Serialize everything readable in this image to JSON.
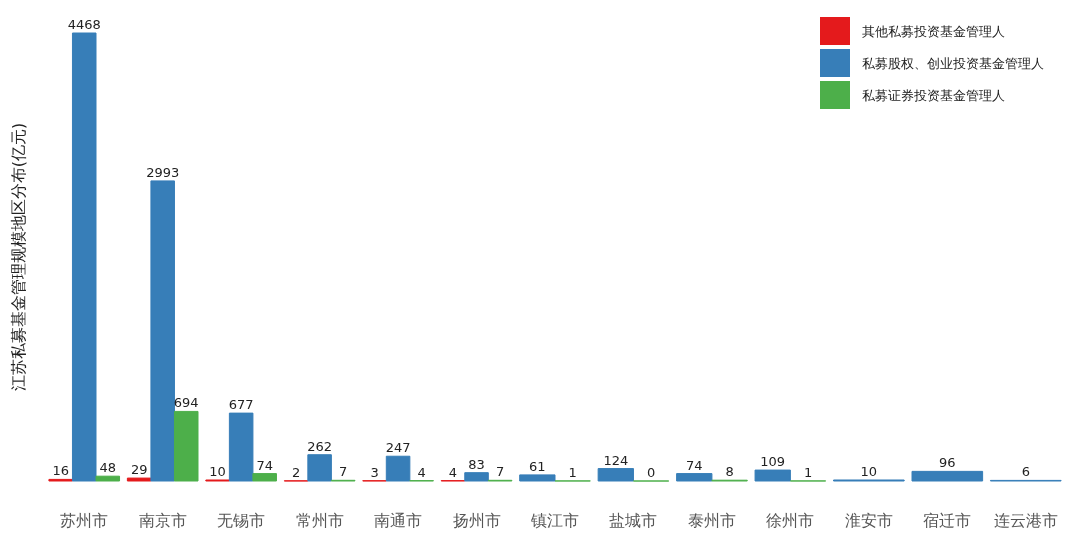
{
  "chart_data": {
    "type": "bar",
    "ylabel": "江苏私募基金管理规模地区分布(亿元)",
    "categories": [
      "苏州市",
      "南京市",
      "无锡市",
      "常州市",
      "南通市",
      "扬州市",
      "镇江市",
      "盐城市",
      "泰州市",
      "徐州市",
      "淮安市",
      "宿迁市",
      "连云港市"
    ],
    "series": [
      {
        "name": "其他私募投资基金管理人",
        "color": "#e41a1c",
        "values": [
          16,
          29,
          10,
          2,
          3,
          4,
          null,
          null,
          null,
          null,
          null,
          null,
          null
        ]
      },
      {
        "name": "私募股权、创业投资基金管理人",
        "color": "#377eb8",
        "values": [
          4468,
          2993,
          677,
          262,
          247,
          83,
          61,
          124,
          74,
          109,
          10,
          96,
          6
        ]
      },
      {
        "name": "私募证券投资基金管理人",
        "color": "#4daf4a",
        "values": [
          48,
          694,
          74,
          7,
          4,
          7,
          1,
          0,
          8,
          1,
          null,
          null,
          null
        ]
      }
    ],
    "data_labels": true,
    "legend": "top right"
  }
}
